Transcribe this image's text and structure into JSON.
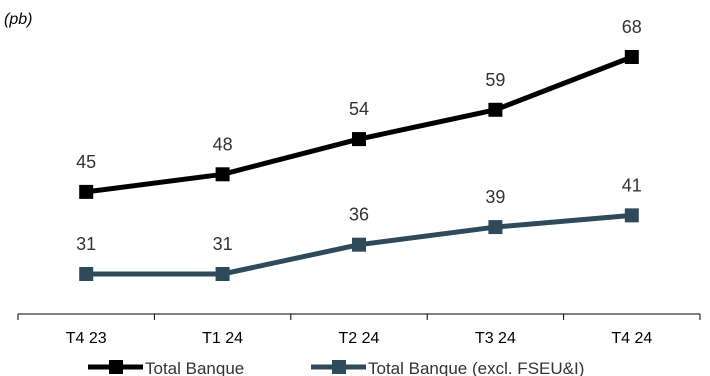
{
  "chart_data": {
    "type": "line",
    "unit_label": "(pb)",
    "title": "",
    "xlabel": "",
    "ylabel": "",
    "categories": [
      "T4 23",
      "T1 24",
      "T2 24",
      "T3 24",
      "T4 24"
    ],
    "series": [
      {
        "name": "Total Banque",
        "values": [
          45,
          48,
          54,
          59,
          68
        ],
        "color": "#000000"
      },
      {
        "name": "Total Banque (excl. FSEU&I)",
        "values": [
          31,
          31,
          36,
          39,
          41
        ],
        "color": "#2f4a5a"
      }
    ],
    "data_labels": true,
    "grid": false,
    "legend_position": "bottom",
    "marker": "square",
    "ylim": [
      16.6,
      77
    ]
  }
}
